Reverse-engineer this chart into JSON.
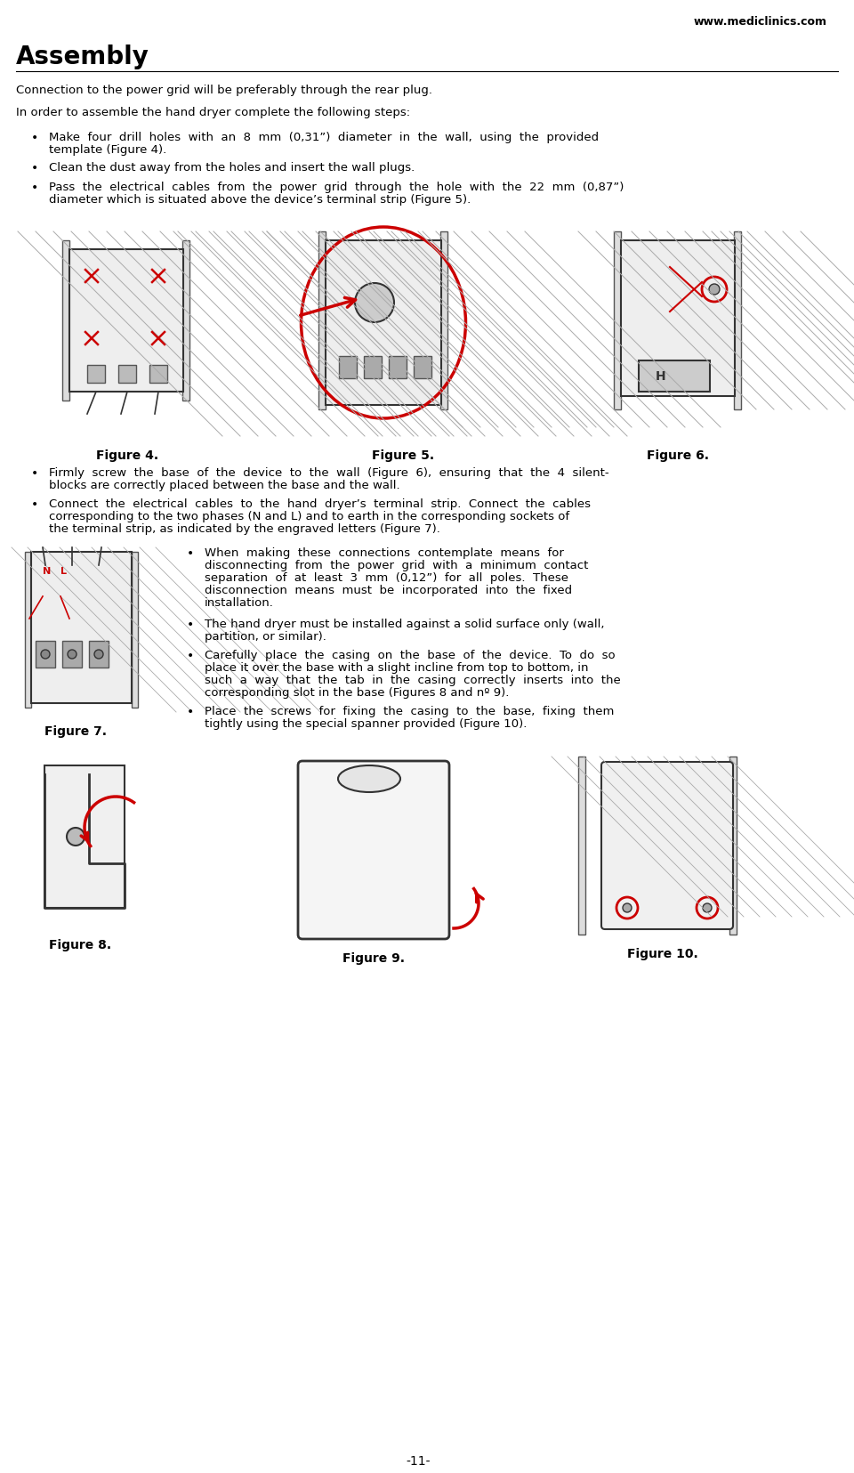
{
  "website": "www.mediclinics.com",
  "title": "Assembly",
  "bg_color": "#ffffff",
  "text_color": "#000000",
  "page_number": "-11-",
  "para1": "Connection to the power grid will be preferably through the rear plug.",
  "para2": "In order to assemble the hand dryer complete the following steps:",
  "bullets_top": [
    "Make  four  drill  holes  with  an  8  mm  (0,31”)  diameter  in  the  wall,  using  the  provided\ntemplate (Figure 4).",
    "Clean the dust away from the holes and insert the wall plugs.",
    "Pass  the  electrical  cables  from  the  power  grid  through  the  hole  with  the  22  mm  (0,87”)\ndiameter which is situated above the device’s terminal strip (Figure 5)."
  ],
  "fig4_label": "Figure 4.",
  "fig5_label": "Figure 5.",
  "fig6_label": "Figure 6.",
  "bullets_mid": [
    "Firmly  screw  the  base  of  the  device  to  the  wall  (Figure  6),  ensuring  that  the  4  silent-\nblocks are correctly placed between the base and the wall.",
    "Connect  the  electrical  cables  to  the  hand  dryer’s  terminal  strip.  Connect  the  cables\ncorresponding to the two phases (N and L) and to earth in the corresponding sockets of\nthe terminal strip, as indicated by the engraved letters (Figure 7)."
  ],
  "fig7_label": "Figure 7.",
  "fig8_label": "Figure 8.",
  "fig9_label": "Figure 9.",
  "fig10_label": "Figure 10.",
  "bullets_right": [
    "When  making  these  connections  contemplate  means  for\ndisconnecting  from  the  power  grid  with  a  minimum  contact\nseparation  of  at  least  3  mm  (0,12”)  for  all  poles.  These\ndisconnection  means  must  be  incorporated  into  the  fixed\ninstallation.",
    "The hand dryer must be installed against a solid surface only (wall,\npartition, or similar).",
    "Carefully  place  the  casing  on  the  base  of  the  device.  To  do  so\nplace it over the base with a slight incline from top to bottom, in\nsuch  a  way  that  the  tab  in  the  casing  correctly  inserts  into  the\ncorresponding slot in the base (Figures 8 and nº 9).",
    "Place  the  screws  for  fixing  the  casing  to  the  base,  fixing  them\ntightly using the special spanner provided (Figure 10)."
  ]
}
